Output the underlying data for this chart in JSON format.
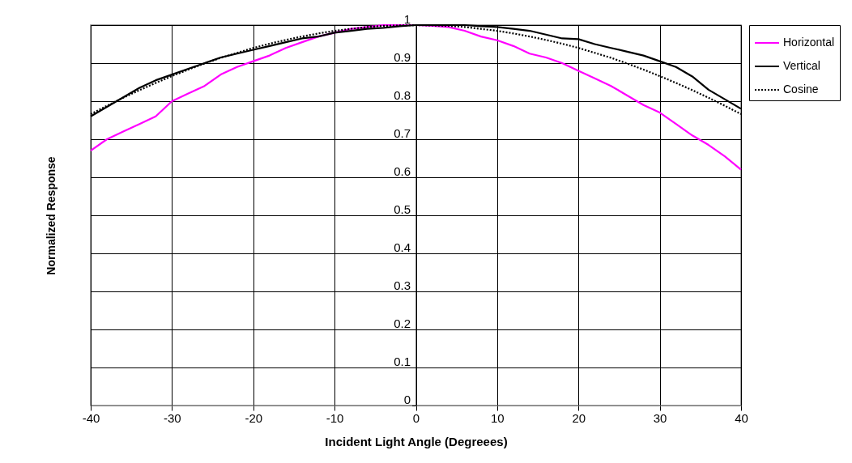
{
  "chart_data": {
    "type": "line",
    "xlabel": "Incident Light Angle (Degreees)",
    "ylabel": "Normalized Response",
    "x": [
      -40,
      -38,
      -36,
      -34,
      -32,
      -30,
      -28,
      -26,
      -24,
      -22,
      -20,
      -18,
      -16,
      -14,
      -12,
      -10,
      -8,
      -6,
      -4,
      -2,
      0,
      2,
      4,
      6,
      8,
      10,
      12,
      14,
      16,
      18,
      20,
      22,
      24,
      26,
      28,
      30,
      32,
      34,
      36,
      38,
      40
    ],
    "xlim": [
      -40,
      40
    ],
    "xticks": [
      -40,
      -30,
      -20,
      -10,
      0,
      10,
      20,
      30,
      40
    ],
    "ylim": [
      0,
      1
    ],
    "yticks": [
      0,
      0.1,
      0.2,
      0.3,
      0.4,
      0.5,
      0.6,
      0.7,
      0.8,
      0.9,
      1
    ],
    "grid": true,
    "legend": "right",
    "marker": "none",
    "series": [
      {
        "name": "Horizontal",
        "color": "#ff00ff",
        "line_style": "solid",
        "values": [
          0.67,
          0.7,
          0.72,
          0.74,
          0.76,
          0.8,
          0.82,
          0.84,
          0.87,
          0.89,
          0.905,
          0.92,
          0.94,
          0.955,
          0.97,
          0.98,
          0.99,
          0.995,
          1,
          1,
          1,
          0.998,
          0.995,
          0.985,
          0.97,
          0.96,
          0.945,
          0.925,
          0.915,
          0.9,
          0.88,
          0.86,
          0.84,
          0.815,
          0.79,
          0.77,
          0.74,
          0.71,
          0.685,
          0.655,
          0.62
        ]
      },
      {
        "name": "Vertical",
        "color": "#000000",
        "line_style": "solid",
        "values": [
          0.76,
          0.785,
          0.81,
          0.835,
          0.855,
          0.87,
          0.885,
          0.9,
          0.915,
          0.925,
          0.935,
          0.945,
          0.955,
          0.965,
          0.97,
          0.98,
          0.985,
          0.99,
          0.993,
          0.997,
          1,
          1,
          1,
          1,
          0.997,
          0.995,
          0.99,
          0.985,
          0.975,
          0.965,
          0.963,
          0.95,
          0.94,
          0.93,
          0.92,
          0.905,
          0.89,
          0.865,
          0.83,
          0.805,
          0.78
        ]
      },
      {
        "name": "Cosine",
        "color": "#000000",
        "line_style": "dotted",
        "values": [
          0.766,
          0.788,
          0.809,
          0.829,
          0.848,
          0.866,
          0.883,
          0.899,
          0.914,
          0.927,
          0.94,
          0.951,
          0.961,
          0.97,
          0.978,
          0.985,
          0.99,
          0.995,
          0.998,
          0.999,
          1,
          0.999,
          0.998,
          0.995,
          0.99,
          0.985,
          0.978,
          0.97,
          0.961,
          0.951,
          0.94,
          0.927,
          0.914,
          0.899,
          0.883,
          0.866,
          0.848,
          0.829,
          0.809,
          0.788,
          0.766
        ]
      }
    ]
  }
}
